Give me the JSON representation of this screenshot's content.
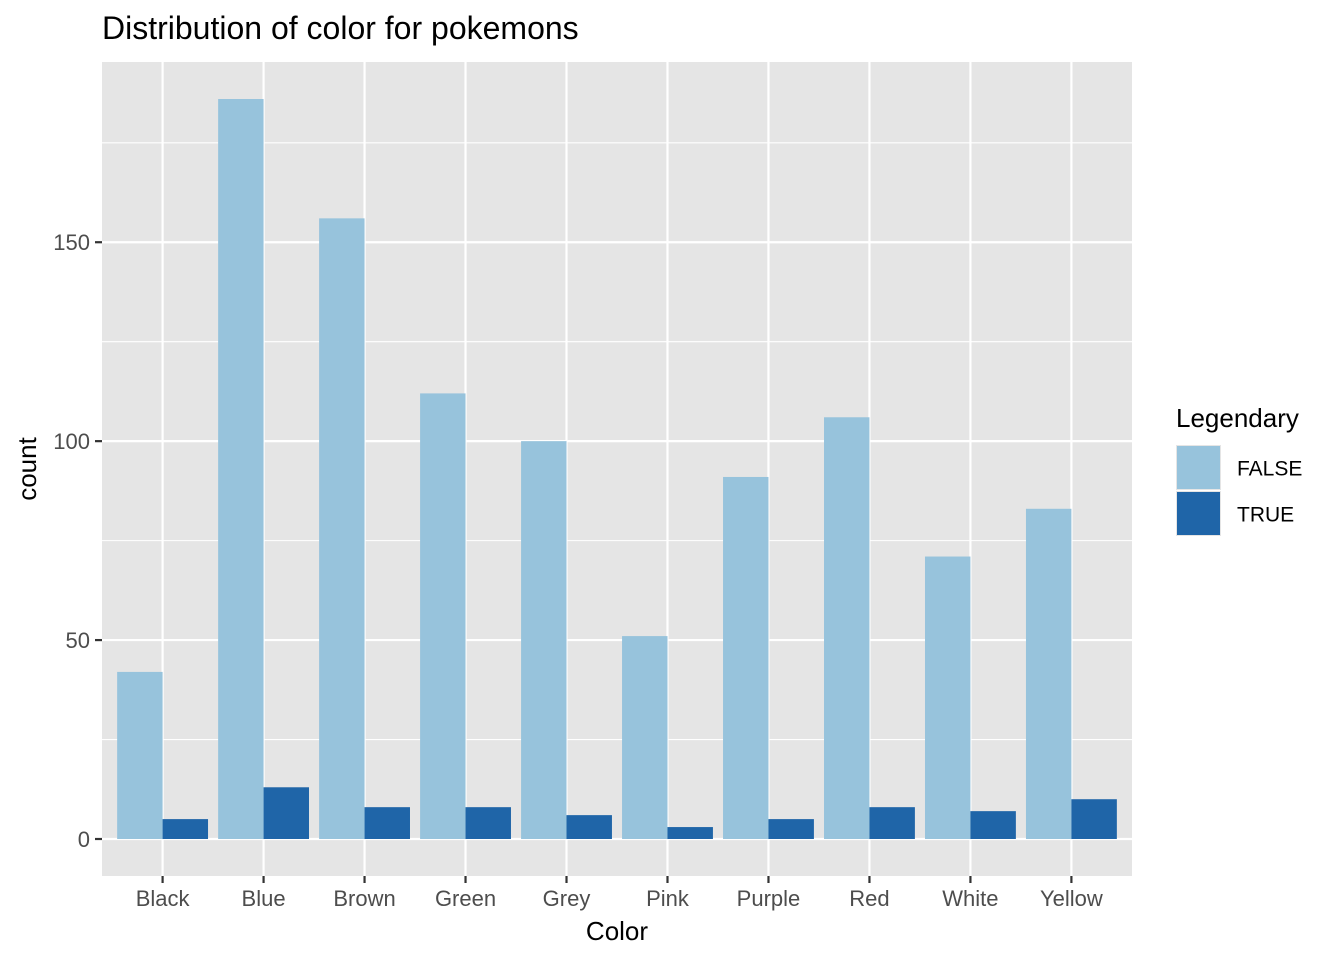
{
  "chart_data": {
    "type": "bar",
    "title": "Distribution of color for pokemons",
    "xlabel": "Color",
    "ylabel": "count",
    "categories": [
      "Black",
      "Blue",
      "Brown",
      "Green",
      "Grey",
      "Pink",
      "Purple",
      "Red",
      "White",
      "Yellow"
    ],
    "series": [
      {
        "name": "FALSE",
        "color": "#97C3DC",
        "values": [
          42,
          186,
          156,
          112,
          100,
          51,
          91,
          106,
          71,
          83
        ]
      },
      {
        "name": "TRUE",
        "color": "#1F65A8",
        "values": [
          5,
          13,
          8,
          8,
          6,
          3,
          5,
          8,
          7,
          10
        ]
      }
    ],
    "ylim": [
      -9.3,
      195.3
    ],
    "yticks": [
      0,
      50,
      100,
      150
    ],
    "yticklabels": [
      "0",
      "50",
      "100",
      "150"
    ],
    "grid": true,
    "legend": {
      "title": "Legendary",
      "placement": "right"
    },
    "background_color": "#E5E5E5",
    "grid_color": "#FFFFFF"
  }
}
